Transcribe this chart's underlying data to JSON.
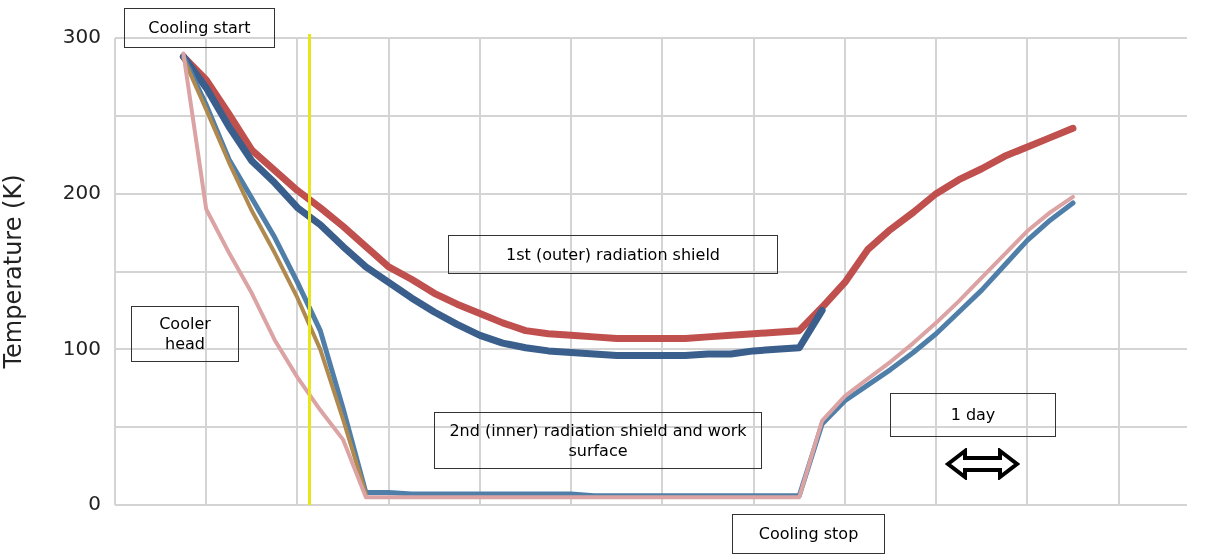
{
  "chart_data": {
    "type": "line",
    "ylabel": "Temperature (K)",
    "categories": [
      null,
      null,
      null,
      null,
      null,
      null,
      null,
      null,
      null,
      null,
      null,
      null,
      null,
      null,
      null,
      null,
      null,
      null,
      null,
      null,
      null,
      null,
      null,
      null,
      null,
      null,
      null,
      null,
      null,
      null,
      null,
      null,
      null,
      null,
      null,
      null,
      null,
      null,
      null,
      null,
      null,
      null,
      null,
      null,
      null,
      null,
      null,
      null
    ],
    "ylim": [
      0,
      300
    ],
    "yticks": [
      0,
      {
        "value": 50,
        "label": null
      },
      100,
      {
        "value": 150,
        "label": null
      },
      200,
      {
        "value": 250,
        "label": null
      },
      300
    ],
    "tick_labels": "y",
    "grid": true,
    "legend": false,
    "marker": "none",
    "line_style": "solid",
    "series": [
      {
        "color": "#dba3a3",
        "values": [
          null,
          null,
          null,
          290,
          190,
          162,
          136,
          106,
          82,
          61,
          42,
          5,
          5,
          5,
          5,
          5,
          5,
          5,
          5,
          5,
          5,
          5,
          5,
          5,
          5,
          5,
          5,
          5,
          5,
          5,
          5,
          54,
          70,
          81,
          92,
          104,
          117,
          131,
          146,
          161,
          176,
          188,
          198,
          null,
          null,
          null,
          null,
          null
        ]
      },
      {
        "color": "#b0894f",
        "values": [
          null,
          null,
          null,
          287,
          254,
          220,
          189,
          162,
          133,
          100,
          55,
          7,
          null,
          null,
          null,
          null,
          null,
          null,
          null,
          null,
          null,
          null,
          null,
          null,
          null,
          null,
          null,
          null,
          null,
          null,
          null,
          null,
          null,
          null,
          null,
          null,
          null,
          null,
          null,
          null,
          null,
          null,
          null,
          null,
          null,
          null,
          null,
          null
        ]
      },
      {
        "color": "#4f7fa8",
        "values": [
          null,
          null,
          null,
          288,
          257,
          222,
          197,
          172,
          143,
          112,
          62,
          8,
          8,
          7,
          7,
          7,
          7,
          7,
          7,
          7,
          7,
          6,
          6,
          6,
          6,
          6,
          6,
          6,
          6,
          6,
          6,
          52,
          67,
          77,
          87,
          98,
          110,
          124,
          138,
          154,
          170,
          183,
          194,
          null,
          null,
          null,
          null,
          null
        ]
      },
      {
        "color": "#3a5f8c",
        "values": [
          null,
          null,
          null,
          288,
          268,
          243,
          221,
          207,
          191,
          180,
          166,
          153,
          143,
          133,
          124,
          116,
          109,
          104,
          101,
          99,
          98,
          97,
          96,
          96,
          96,
          96,
          97,
          97,
          99,
          100,
          101,
          125,
          null,
          null,
          null,
          null,
          null,
          null,
          null,
          null,
          null,
          null,
          null,
          null,
          null,
          null,
          null,
          null
        ]
      },
      {
        "color": "#c0504d",
        "values": [
          null,
          null,
          null,
          288,
          273,
          251,
          228,
          215,
          202,
          191,
          179,
          166,
          153,
          145,
          136,
          129,
          123,
          117,
          112,
          110,
          109,
          108,
          107,
          107,
          107,
          107,
          108,
          109,
          110,
          111,
          112,
          127,
          143,
          164,
          177,
          188,
          200,
          209,
          216,
          224,
          230,
          236,
          242,
          null,
          null,
          null,
          null,
          null
        ]
      }
    ],
    "annotations": [
      "Cooling start",
      "Cooler head",
      "1st (outer) radiation shield",
      "2nd (inner) radiation shield and work surface",
      "1 day",
      "Cooling stop"
    ]
  }
}
